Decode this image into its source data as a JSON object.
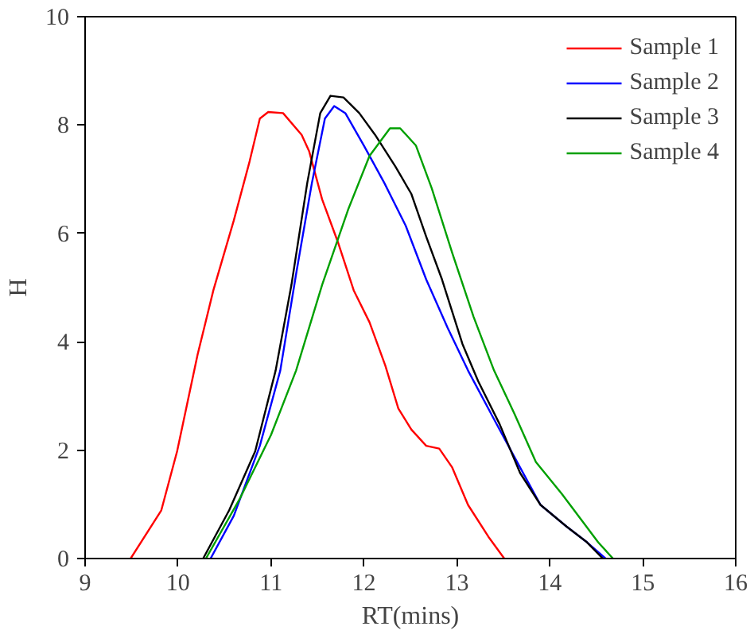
{
  "chart_data": {
    "type": "line",
    "xlabel": "RT(mins)",
    "ylabel": "H",
    "xlim": [
      9,
      16
    ],
    "ylim": [
      0,
      10
    ],
    "xticks": [
      9,
      10,
      11,
      12,
      13,
      14,
      15,
      16
    ],
    "yticks": [
      0,
      2,
      4,
      6,
      8,
      10
    ],
    "grid": false,
    "legend": "top right",
    "marker": "none",
    "line_style": "solid",
    "series": [
      {
        "name": "Sample 1",
        "color": "#ff0000",
        "x": [
          9.49,
          9.82,
          9.99,
          10.21,
          10.38,
          10.6,
          10.77,
          10.88,
          10.97,
          11.13,
          11.33,
          11.41,
          11.55,
          11.72,
          11.89,
          12.06,
          12.23,
          12.37,
          12.51,
          12.67,
          12.81,
          12.95,
          13.12,
          13.34,
          13.51
        ],
        "values": [
          0,
          0.89,
          1.98,
          3.76,
          4.95,
          6.24,
          7.33,
          8.12,
          8.24,
          8.22,
          7.82,
          7.52,
          6.63,
          5.84,
          4.95,
          4.36,
          3.56,
          2.77,
          2.38,
          2.08,
          2.03,
          1.68,
          0.99,
          0.4,
          0
        ]
      },
      {
        "name": "Sample 2",
        "color": "#0000ff",
        "x": [
          10.35,
          10.6,
          10.88,
          11.1,
          11.27,
          11.44,
          11.58,
          11.68,
          11.8,
          12.0,
          12.22,
          12.45,
          12.67,
          12.9,
          13.12,
          13.4,
          13.68,
          13.9,
          14.18,
          14.4,
          14.6
        ],
        "values": [
          0,
          0.79,
          2.08,
          3.47,
          5.25,
          6.93,
          8.12,
          8.35,
          8.22,
          7.62,
          6.93,
          6.14,
          5.15,
          4.26,
          3.47,
          2.57,
          1.68,
          0.99,
          0.59,
          0.3,
          0
        ]
      },
      {
        "name": "Sample 3",
        "color": "#000000",
        "x": [
          10.27,
          10.55,
          10.83,
          11.05,
          11.22,
          11.39,
          11.53,
          11.64,
          11.78,
          11.95,
          12.12,
          12.34,
          12.51,
          12.67,
          12.84,
          13.06,
          13.23,
          13.46,
          13.68,
          13.9,
          14.18,
          14.4,
          14.57
        ],
        "values": [
          0,
          0.89,
          1.98,
          3.47,
          5.05,
          6.93,
          8.22,
          8.54,
          8.51,
          8.22,
          7.82,
          7.23,
          6.73,
          5.94,
          5.15,
          3.96,
          3.27,
          2.48,
          1.58,
          0.99,
          0.59,
          0.3,
          0
        ]
      },
      {
        "name": "Sample 4",
        "color": "#00a000",
        "x": [
          10.3,
          10.66,
          11.0,
          11.27,
          11.55,
          11.83,
          12.06,
          12.28,
          12.39,
          12.56,
          12.73,
          12.95,
          13.18,
          13.4,
          13.62,
          13.85,
          14.13,
          14.35,
          14.52,
          14.68
        ],
        "values": [
          0,
          1.09,
          2.28,
          3.47,
          5.05,
          6.44,
          7.43,
          7.94,
          7.94,
          7.62,
          6.83,
          5.64,
          4.46,
          3.47,
          2.67,
          1.78,
          1.19,
          0.69,
          0.3,
          0
        ]
      }
    ]
  }
}
